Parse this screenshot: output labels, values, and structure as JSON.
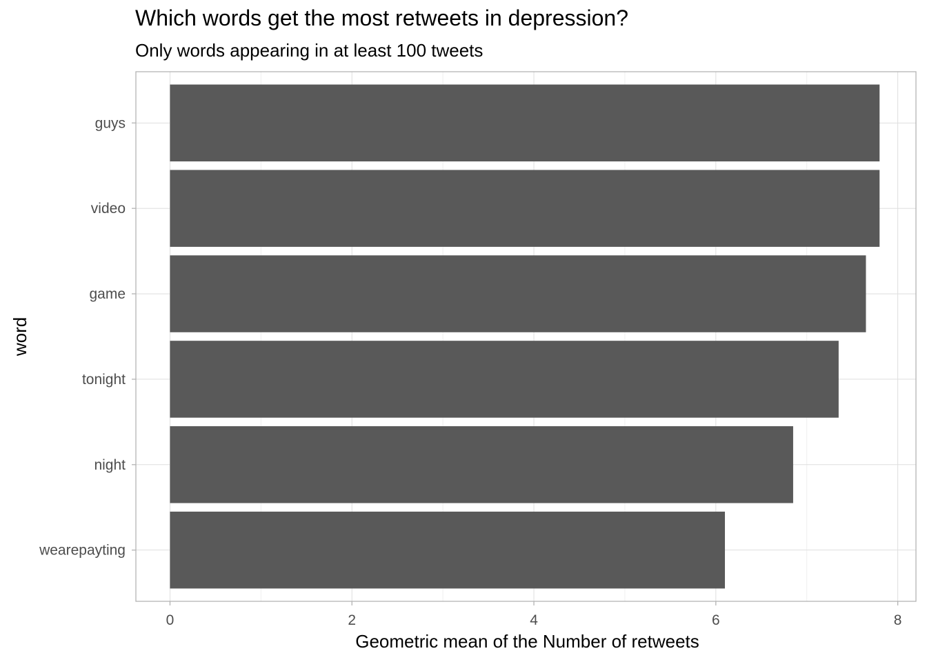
{
  "chart_data": {
    "type": "bar",
    "orientation": "horizontal",
    "title": "Which words get the most retweets in depression?",
    "subtitle": "Only words appearing in at least 100 tweets",
    "xlabel": "Geometric mean of the Number of retweets",
    "ylabel": "word",
    "categories": [
      "guys",
      "video",
      "game",
      "tonight",
      "night",
      "wearepayting"
    ],
    "values": [
      7.8,
      7.8,
      7.65,
      7.35,
      6.85,
      6.1
    ],
    "xlim": [
      -0.375,
      8.2
    ],
    "x_ticks": [
      0,
      2,
      4,
      6,
      8
    ],
    "grid": true,
    "colors": {
      "bar": "#595959",
      "grid_major": "#dedede",
      "grid_minor": "#efefef",
      "panel_border": "#b3b3b3",
      "tick_text": "#4d4d4d"
    }
  }
}
